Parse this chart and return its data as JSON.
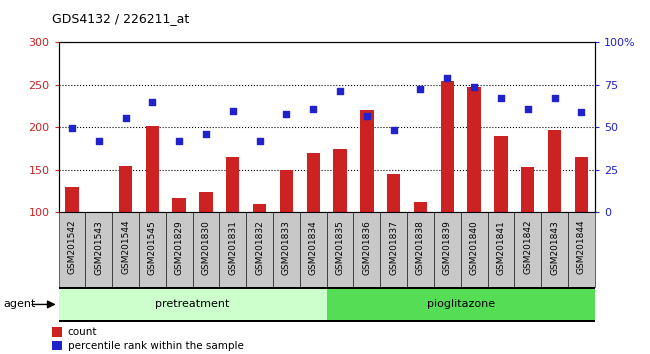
{
  "title": "GDS4132 / 226211_at",
  "categories": [
    "GSM201542",
    "GSM201543",
    "GSM201544",
    "GSM201545",
    "GSM201829",
    "GSM201830",
    "GSM201831",
    "GSM201832",
    "GSM201833",
    "GSM201834",
    "GSM201835",
    "GSM201836",
    "GSM201837",
    "GSM201838",
    "GSM201839",
    "GSM201840",
    "GSM201841",
    "GSM201842",
    "GSM201843",
    "GSM201844"
  ],
  "bar_values": [
    130,
    101,
    155,
    202,
    117,
    124,
    165,
    110,
    150,
    170,
    175,
    220,
    145,
    112,
    255,
    248,
    190,
    153,
    197,
    165
  ],
  "scatter_values": [
    199,
    184,
    211,
    230,
    184,
    192,
    219,
    184,
    216,
    222,
    243,
    214,
    197,
    245,
    258,
    248,
    235,
    222,
    235,
    218
  ],
  "group_split": 10,
  "bar_color": "#CC2222",
  "scatter_color": "#2222CC",
  "ylim_left": [
    100,
    300
  ],
  "ylim_right": [
    0,
    100
  ],
  "yticks_left": [
    100,
    150,
    200,
    250,
    300
  ],
  "yticks_right": [
    0,
    25,
    50,
    75,
    100
  ],
  "ytick_labels_right": [
    "0",
    "25",
    "50",
    "75",
    "100%"
  ],
  "dotted_lines": [
    150,
    200,
    250
  ],
  "legend_count": "count",
  "legend_pct": "percentile rank within the sample",
  "agent_label": "agent",
  "bg_plot": "#FFFFFF",
  "xticklabel_bg": "#C8C8C8",
  "group1_color": "#CCFFCC",
  "group2_color": "#55DD55",
  "group_bar_bg": "#111111"
}
